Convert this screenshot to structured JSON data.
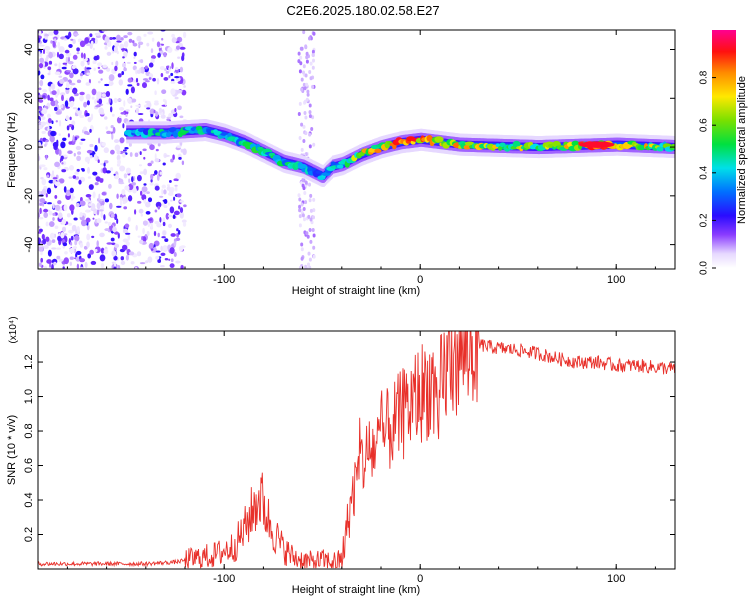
{
  "figure": {
    "title": "C2E6.2025.180.02.58.E27"
  },
  "colors": {
    "snr_line": "#e8302a",
    "axis": "#000000"
  },
  "chart_data": [
    {
      "type": "heatmap",
      "title": "C2E6.2025.180.02.58.E27",
      "xlabel": "Height of straight line (km)",
      "ylabel": "Frequency (Hz)",
      "xlim": [
        -195,
        130
      ],
      "ylim": [
        -50,
        48
      ],
      "x_ticks": [
        -100,
        0,
        100
      ],
      "x_tick_labels": [
        "-100",
        "0",
        "100"
      ],
      "y_ticks": [
        -40,
        -20,
        0,
        20,
        40
      ],
      "y_tick_labels": [
        "-40",
        "-20",
        "0",
        "20",
        "40"
      ],
      "grid": false,
      "colorbar": {
        "label": "Normalized spectral amplitude",
        "range": [
          0,
          1
        ],
        "ticks": [
          0.0,
          0.2,
          0.4,
          0.6,
          0.8
        ],
        "tick_labels": [
          "0.0",
          "0.2",
          "0.4",
          "0.6",
          "0.8"
        ]
      },
      "ridge": {
        "x": [
          -150,
          -130,
          -110,
          -100,
          -90,
          -80,
          -70,
          -60,
          -50,
          -45,
          -40,
          -30,
          -20,
          -10,
          0,
          20,
          60,
          100,
          130
        ],
        "frequency": [
          6,
          6,
          7,
          5,
          2,
          -2,
          -6,
          -8,
          -12,
          -8,
          -7,
          -3,
          0,
          2,
          3,
          1,
          0,
          1,
          0
        ],
        "amplitude": [
          0.4,
          0.5,
          0.5,
          0.45,
          0.5,
          0.55,
          0.5,
          0.45,
          0.4,
          0.45,
          0.6,
          0.75,
          0.85,
          0.9,
          0.95,
          0.8,
          0.7,
          0.98,
          0.6
        ]
      }
    },
    {
      "type": "line",
      "xlabel": "Height of straight line (km)",
      "ylabel": "SNR (10 * v/v)",
      "y_multiplier": "(x10⁴)",
      "xlim": [
        -195,
        130
      ],
      "ylim": [
        0,
        1.38
      ],
      "x_ticks": [
        -100,
        0,
        100
      ],
      "x_tick_labels": [
        "-100",
        "0",
        "100"
      ],
      "y_ticks": [
        0.2,
        0.4,
        0.6,
        0.8,
        1.0,
        1.2
      ],
      "y_tick_labels": [
        "0.2",
        "0.4",
        "0.6",
        "0.8",
        "1.0",
        "1.2"
      ],
      "grid": false,
      "series": [
        {
          "x": [
            -195,
            -180,
            -160,
            -140,
            -125,
            -115,
            -105,
            -95,
            -90,
            -85,
            -82,
            -80,
            -78,
            -75,
            -70,
            -65,
            -60,
            -55,
            -50,
            -45,
            -40,
            -38,
            -35,
            -32,
            -30,
            -25,
            -20,
            -15,
            -10,
            -5,
            0,
            5,
            8,
            9,
            10,
            12,
            15,
            20,
            25,
            30,
            35,
            40,
            50,
            60,
            70,
            80,
            90,
            100,
            110,
            120,
            130
          ],
          "y": [
            0.03,
            0.03,
            0.03,
            0.03,
            0.04,
            0.06,
            0.08,
            0.13,
            0.22,
            0.35,
            0.42,
            0.38,
            0.3,
            0.22,
            0.12,
            0.07,
            0.05,
            0.04,
            0.05,
            0.04,
            0.05,
            0.2,
            0.4,
            0.55,
            0.62,
            0.68,
            0.75,
            0.82,
            0.88,
            0.95,
            1.02,
            1.07,
            1.0,
            0.6,
            1.05,
            1.12,
            1.2,
            1.26,
            1.29,
            1.3,
            1.29,
            1.28,
            1.27,
            1.25,
            1.22,
            1.2,
            1.2,
            1.18,
            1.18,
            1.17,
            1.16
          ]
        }
      ]
    }
  ]
}
